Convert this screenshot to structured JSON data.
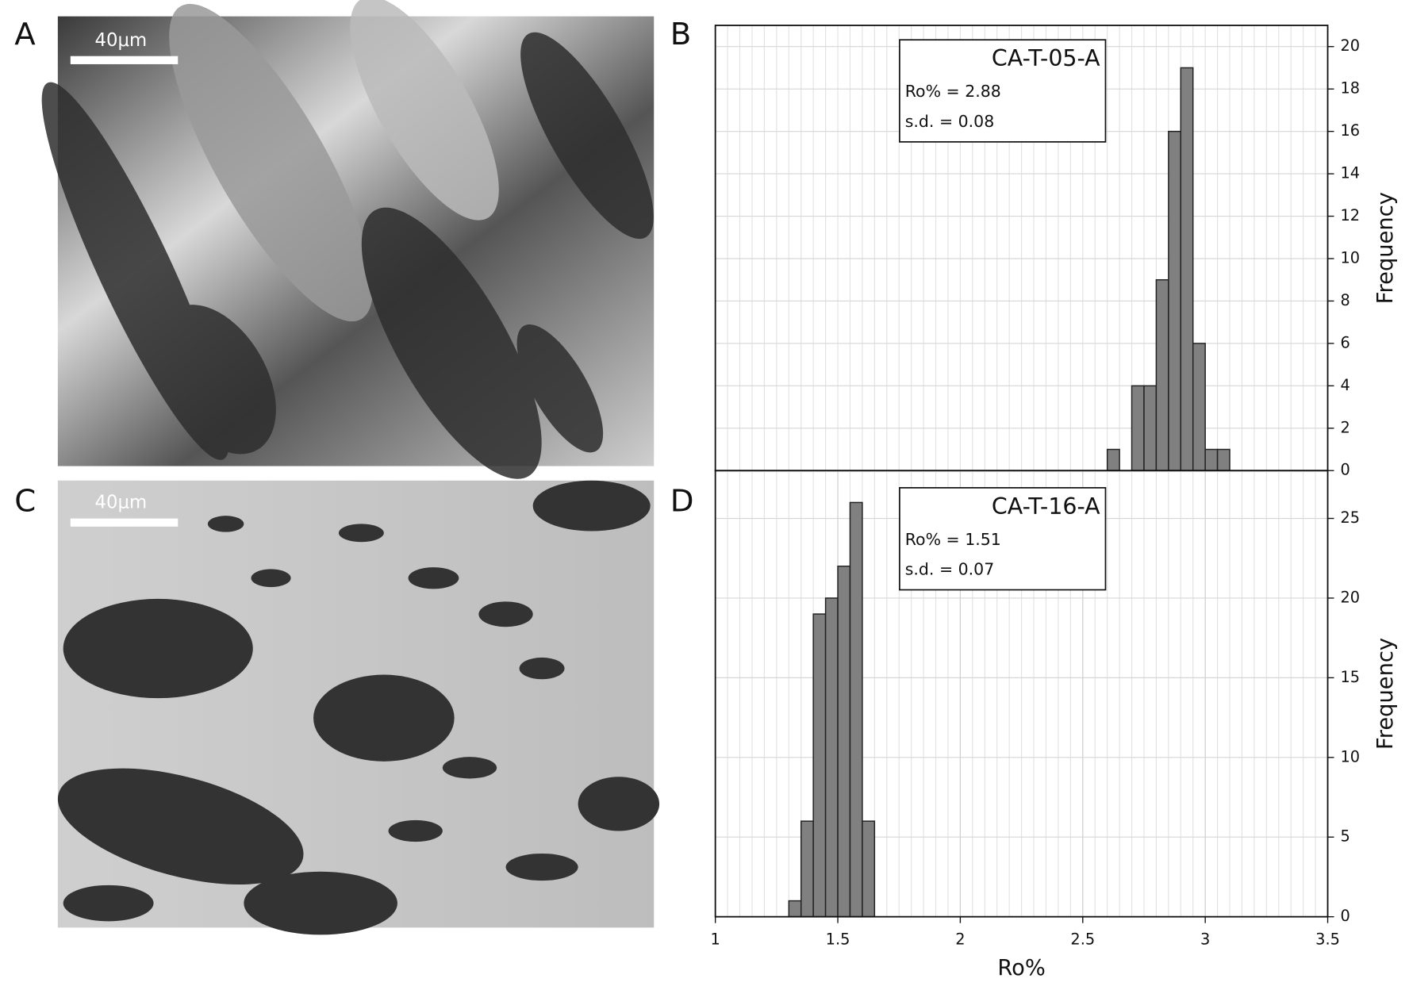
{
  "images": [
    {
      "panel_label": "A",
      "scale_bar": "40μm"
    },
    {
      "panel_label": "C",
      "scale_bar": "40μm"
    }
  ],
  "chart_data": [
    {
      "type": "histogram",
      "panel_label": "B",
      "title": "CA-T-05-A",
      "annotations": [
        "Ro% = 2.88",
        "s.d. = 0.08"
      ],
      "y_label": "Frequency",
      "bins": [
        2.6,
        2.65,
        2.7,
        2.75,
        2.8,
        2.85,
        2.9,
        2.95,
        3.0,
        3.05,
        3.1
      ],
      "values": [
        1,
        0,
        4,
        4,
        9,
        16,
        19,
        6,
        1,
        1
      ],
      "color": "#808080",
      "xlim": [
        1,
        3.5
      ],
      "ylim": [
        0,
        21
      ],
      "yticks": [
        0,
        2,
        4,
        6,
        8,
        10,
        12,
        14,
        16,
        18,
        20
      ],
      "grid": true
    },
    {
      "type": "histogram",
      "panel_label": "D",
      "title": "CA-T-16-A",
      "annotations": [
        "Ro% = 1.51",
        "s.d. = 0.07"
      ],
      "x_label": "Ro%",
      "y_label": "Frequency",
      "bins": [
        1.3,
        1.35,
        1.4,
        1.45,
        1.5,
        1.55,
        1.6,
        1.65
      ],
      "values": [
        1,
        6,
        19,
        20,
        22,
        26,
        6
      ],
      "color": "#808080",
      "xlim": [
        1,
        3.5
      ],
      "xticks": [
        1,
        1.5,
        2,
        2.5,
        3,
        3.5
      ],
      "ylim": [
        0,
        28
      ],
      "yticks": [
        0,
        5,
        10,
        15,
        20,
        25
      ],
      "grid": true
    }
  ]
}
